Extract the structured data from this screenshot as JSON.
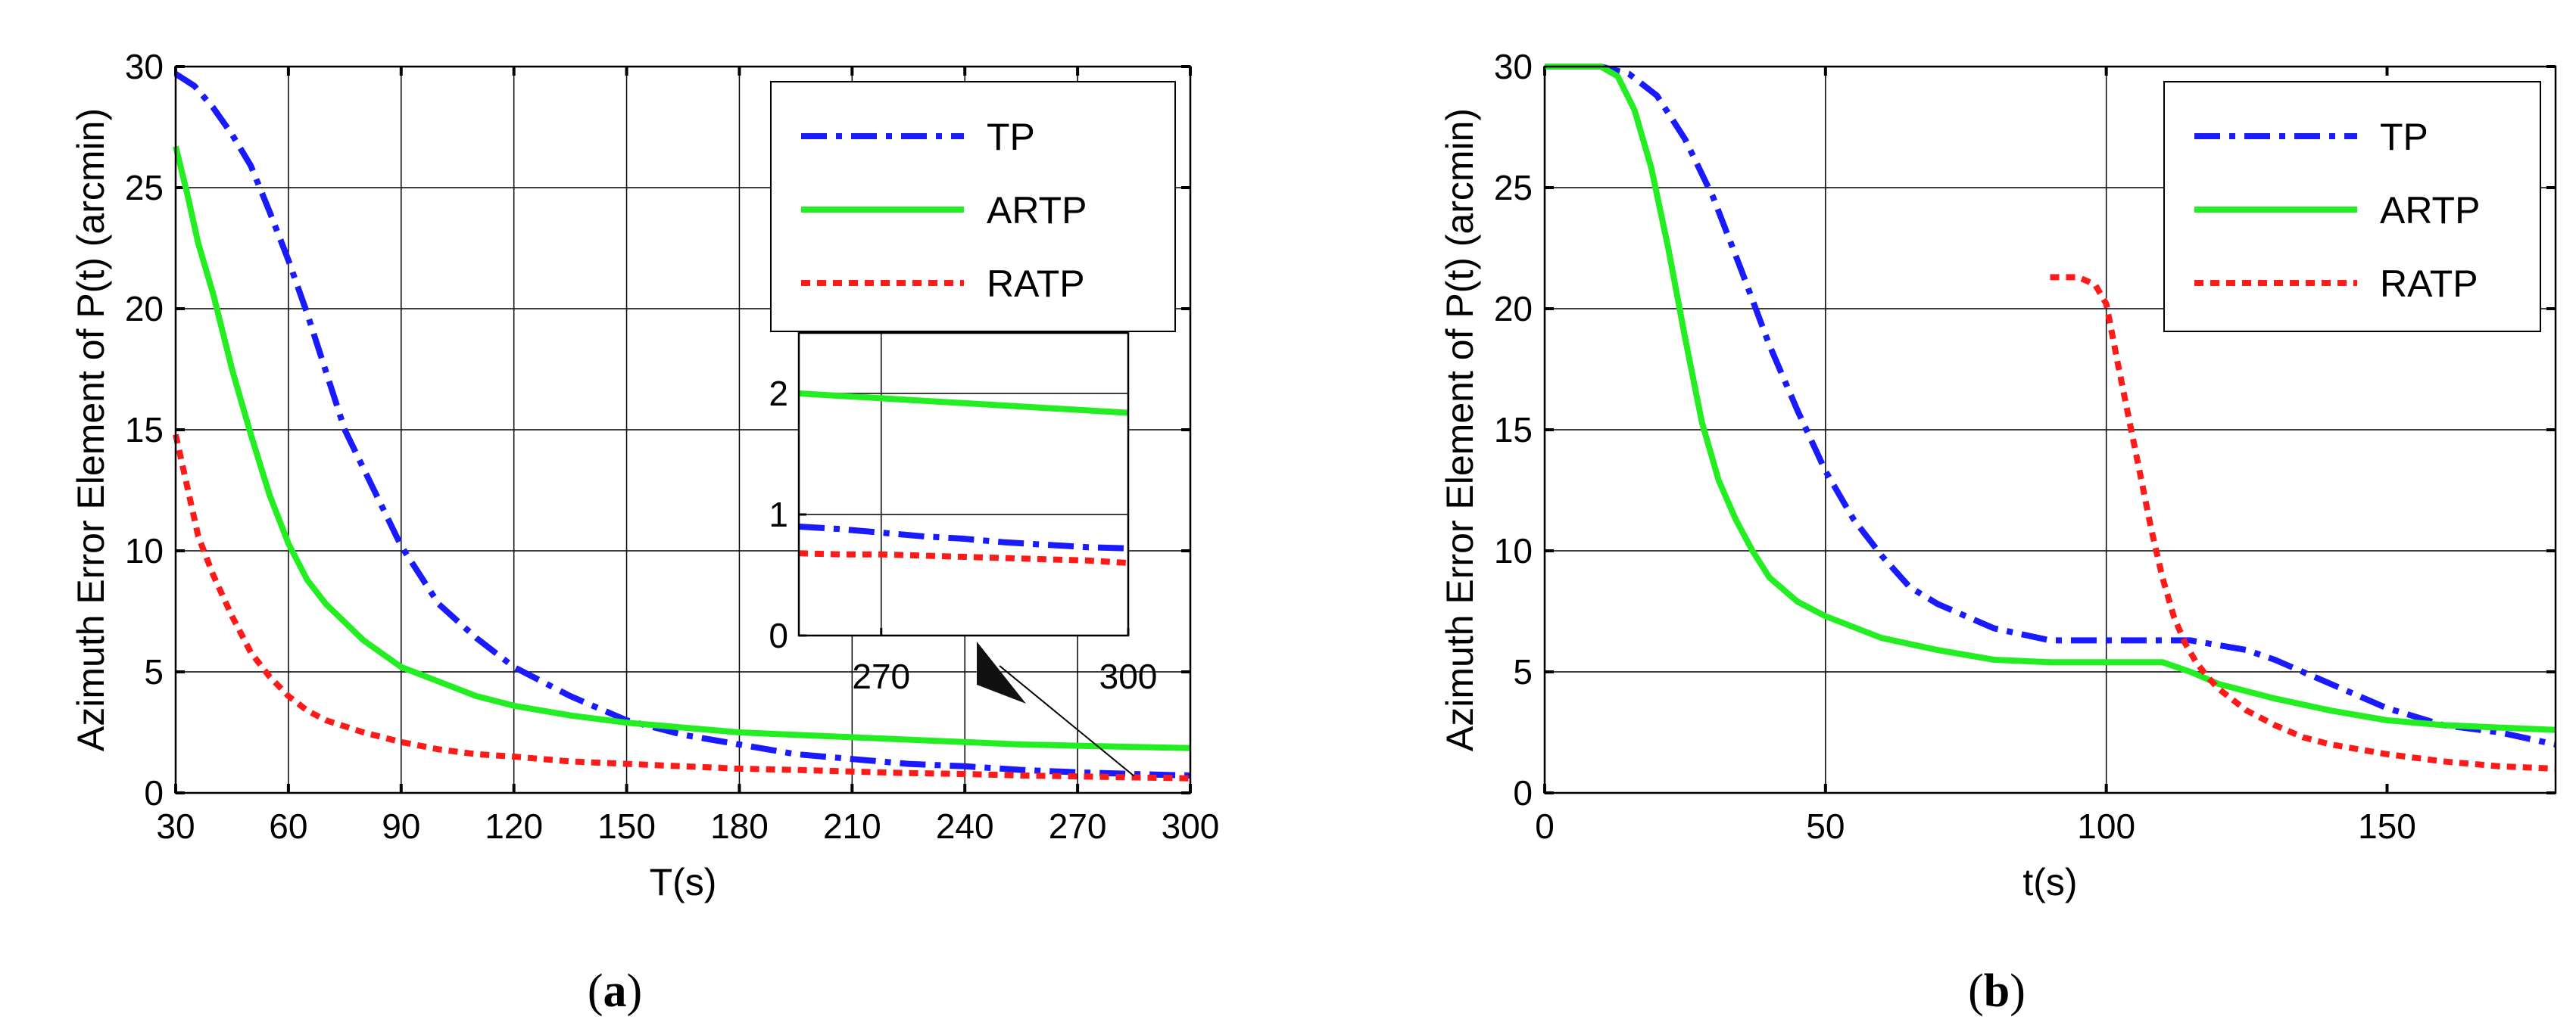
{
  "colors": {
    "tp": "#1a1aff",
    "artp": "#22ee22",
    "ratp": "#ff1a1a"
  },
  "chart_data": [
    {
      "type": "line",
      "panel": "a",
      "caption_open": "(",
      "caption_letter": "a",
      "caption_close": ")",
      "xlabel": "T(s)",
      "ylabel": "Azimuth Error Element of P(t) (arcmin)",
      "xlim": [
        30,
        300
      ],
      "ylim": [
        0,
        30
      ],
      "xticks": [
        "30",
        "60",
        "90",
        "120",
        "150",
        "180",
        "210",
        "240",
        "270",
        "300"
      ],
      "yticks": [
        "0",
        "5",
        "10",
        "15",
        "20",
        "25",
        "30"
      ],
      "grid": true,
      "legend_position": "top-right",
      "legend": [
        "TP",
        "ARTP",
        "RATP"
      ],
      "series": [
        {
          "name": "TP",
          "style": "dash-dot",
          "x": [
            30,
            35,
            40,
            45,
            50,
            55,
            60,
            65,
            70,
            75,
            80,
            90,
            100,
            110,
            120,
            135,
            150,
            165,
            180,
            195,
            210,
            225,
            240,
            255,
            270,
            285,
            300
          ],
          "y": [
            29.7,
            29.2,
            28.3,
            27.2,
            25.9,
            24.0,
            22.0,
            19.8,
            17.4,
            15.0,
            13.4,
            10.2,
            7.8,
            6.4,
            5.2,
            4.0,
            3.0,
            2.4,
            2.0,
            1.6,
            1.4,
            1.2,
            1.1,
            0.95,
            0.85,
            0.78,
            0.72
          ]
        },
        {
          "name": "ARTP",
          "style": "solid",
          "x": [
            30,
            33,
            36,
            40,
            45,
            50,
            55,
            60,
            65,
            70,
            80,
            90,
            100,
            110,
            120,
            135,
            150,
            165,
            180,
            195,
            210,
            225,
            240,
            255,
            270,
            285,
            300
          ],
          "y": [
            26.7,
            24.8,
            22.7,
            20.6,
            17.5,
            14.8,
            12.3,
            10.3,
            8.8,
            7.8,
            6.3,
            5.2,
            4.6,
            4.0,
            3.6,
            3.2,
            2.9,
            2.7,
            2.5,
            2.4,
            2.3,
            2.2,
            2.1,
            2.0,
            1.95,
            1.9,
            1.85
          ]
        },
        {
          "name": "RATP",
          "style": "dotted",
          "x": [
            30,
            33,
            36,
            40,
            45,
            50,
            55,
            60,
            65,
            70,
            80,
            90,
            100,
            110,
            120,
            135,
            150,
            165,
            180,
            195,
            210,
            225,
            240,
            255,
            270,
            285,
            300
          ],
          "y": [
            14.8,
            12.7,
            10.6,
            9.0,
            7.3,
            5.8,
            4.8,
            4.0,
            3.4,
            3.0,
            2.5,
            2.1,
            1.8,
            1.6,
            1.5,
            1.3,
            1.2,
            1.1,
            1.0,
            0.95,
            0.88,
            0.82,
            0.78,
            0.72,
            0.68,
            0.64,
            0.6
          ]
        }
      ],
      "inset": {
        "xlim": [
          260,
          300
        ],
        "ylim": [
          0,
          2.5
        ],
        "xticks": [
          "270",
          "300"
        ],
        "yticks": [
          "0",
          "1",
          "2"
        ],
        "series": [
          {
            "name": "TP",
            "x": [
              260,
              265,
              270,
              275,
              280,
              285,
              290,
              295,
              300
            ],
            "y": [
              0.9,
              0.88,
              0.85,
              0.82,
              0.8,
              0.77,
              0.75,
              0.73,
              0.72
            ]
          },
          {
            "name": "ARTP",
            "x": [
              260,
              265,
              270,
              275,
              280,
              285,
              290,
              295,
              300
            ],
            "y": [
              2.0,
              1.98,
              1.96,
              1.94,
              1.92,
              1.9,
              1.88,
              1.86,
              1.84
            ]
          },
          {
            "name": "RATP",
            "x": [
              260,
              265,
              270,
              275,
              280,
              285,
              290,
              295,
              300
            ],
            "y": [
              0.68,
              0.67,
              0.67,
              0.66,
              0.65,
              0.64,
              0.63,
              0.62,
              0.6
            ]
          }
        ]
      }
    },
    {
      "type": "line",
      "panel": "b",
      "caption_open": "(",
      "caption_letter": "b",
      "caption_close": ")",
      "xlabel": "t(s)",
      "ylabel": "Azimuth Error Element of P(t) (arcmin)",
      "xlim": [
        0,
        180
      ],
      "ylim": [
        0,
        30
      ],
      "xticks": [
        "0",
        "50",
        "100",
        "150"
      ],
      "yticks": [
        "0",
        "5",
        "10",
        "15",
        "20",
        "25",
        "30"
      ],
      "grid": true,
      "legend_position": "top-right",
      "legend": [
        "TP",
        "ARTP",
        "RATP"
      ],
      "series": [
        {
          "name": "TP",
          "style": "dash-dot",
          "x": [
            0,
            5,
            10,
            15,
            20,
            25,
            30,
            35,
            40,
            45,
            50,
            55,
            60,
            65,
            70,
            80,
            90,
            100,
            110,
            115,
            120,
            125,
            130,
            140,
            150,
            160,
            170,
            180
          ],
          "y": [
            30,
            30,
            30,
            29.7,
            28.8,
            27.0,
            24.6,
            21.6,
            18.5,
            15.8,
            13.3,
            11.3,
            9.8,
            8.5,
            7.8,
            6.8,
            6.3,
            6.3,
            6.3,
            6.3,
            6.1,
            5.9,
            5.5,
            4.5,
            3.5,
            2.8,
            2.5,
            2.0
          ]
        },
        {
          "name": "ARTP",
          "style": "solid",
          "x": [
            0,
            5,
            10,
            13,
            16,
            19,
            22,
            25,
            28,
            31,
            34,
            37,
            40,
            45,
            50,
            60,
            70,
            80,
            90,
            100,
            110,
            115,
            120,
            130,
            140,
            150,
            160,
            170,
            180
          ],
          "y": [
            30,
            30,
            30,
            29.6,
            28.2,
            25.8,
            22.5,
            18.8,
            15.3,
            12.9,
            11.3,
            10.0,
            8.9,
            7.9,
            7.3,
            6.4,
            5.9,
            5.5,
            5.4,
            5.4,
            5.4,
            5.0,
            4.5,
            3.9,
            3.4,
            3.0,
            2.8,
            2.7,
            2.6
          ]
        },
        {
          "name": "RATP",
          "style": "dotted",
          "x": [
            90,
            95,
            98,
            100,
            102,
            104,
            106,
            108,
            110,
            112,
            114,
            116,
            118,
            120,
            125,
            130,
            135,
            140,
            150,
            160,
            170,
            180
          ],
          "y": [
            21.3,
            21.3,
            21.0,
            20.2,
            17.8,
            15.5,
            13.2,
            10.9,
            8.9,
            7.3,
            6.2,
            5.4,
            4.8,
            4.3,
            3.4,
            2.8,
            2.3,
            2.0,
            1.6,
            1.3,
            1.1,
            1.0
          ]
        }
      ]
    }
  ]
}
